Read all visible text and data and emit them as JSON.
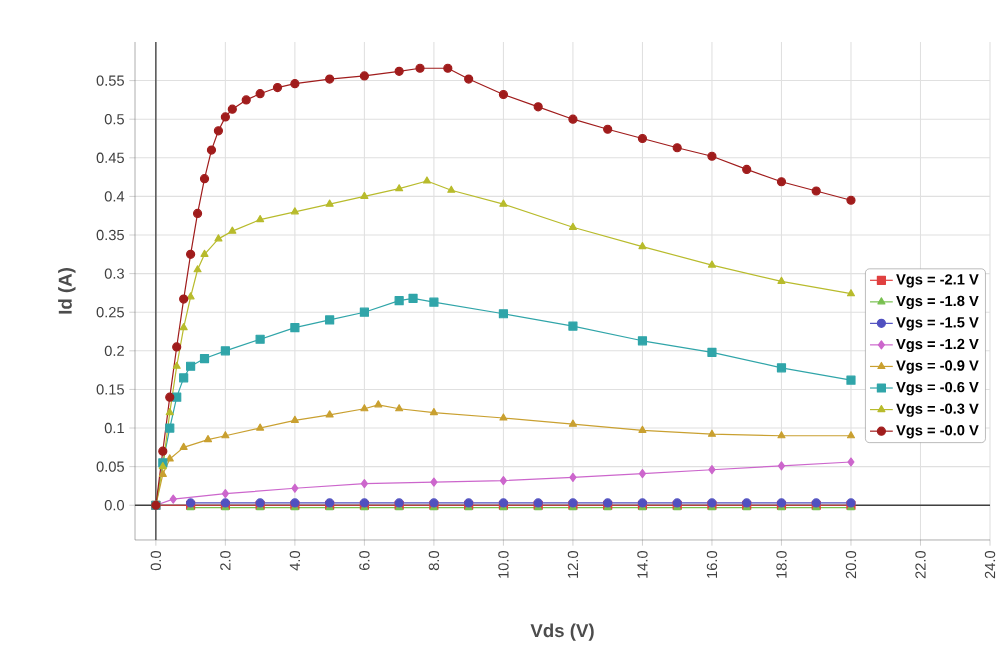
{
  "chart_data": {
    "type": "line",
    "xlabel": "Vds (V)",
    "ylabel": "Id (A)",
    "xlim": [
      -0.6,
      24
    ],
    "ylim": [
      -0.045,
      0.6
    ],
    "xticks": [
      {
        "value": 0,
        "label": "0.0"
      },
      {
        "value": 2,
        "label": "2.0"
      },
      {
        "value": 4,
        "label": "4.0"
      },
      {
        "value": 6,
        "label": "6.0"
      },
      {
        "value": 8,
        "label": "8.0"
      },
      {
        "value": 10,
        "label": "10.0"
      },
      {
        "value": 12,
        "label": "12.0"
      },
      {
        "value": 14,
        "label": "14.0"
      },
      {
        "value": 16,
        "label": "16.0"
      },
      {
        "value": 18,
        "label": "18.0"
      },
      {
        "value": 20,
        "label": "20.0"
      },
      {
        "value": 22,
        "label": "22.0"
      },
      {
        "value": 24,
        "label": "24.0"
      }
    ],
    "yticks": [
      {
        "value": 0,
        "label": "0.0"
      },
      0.05,
      0.1,
      0.15,
      0.2,
      0.25,
      0.3,
      0.35,
      0.4,
      0.45,
      0.5,
      0.55
    ],
    "grid": true,
    "legend": "right",
    "series": [
      {
        "name": "Vgs = -2.1 V",
        "color": "#e04040",
        "marker": "square",
        "x": [
          0,
          1,
          2,
          3,
          4,
          5,
          6,
          7,
          8,
          9,
          10,
          11,
          12,
          13,
          14,
          15,
          16,
          17,
          18,
          19,
          20
        ],
        "values": [
          0,
          0,
          0,
          0,
          0,
          0,
          0,
          0,
          0,
          0,
          0,
          0,
          0,
          0,
          0,
          0,
          0,
          0,
          0,
          0,
          0
        ]
      },
      {
        "name": "Vgs = -1.8 V",
        "color": "#78c050",
        "marker": "triangle",
        "x": [
          1,
          2,
          3,
          4,
          5,
          6,
          7,
          8,
          9,
          10,
          11,
          12,
          13,
          14,
          15,
          16,
          17,
          18,
          19,
          20
        ],
        "values": [
          -0.003,
          -0.003,
          -0.003,
          -0.003,
          -0.003,
          -0.003,
          -0.003,
          -0.003,
          -0.003,
          -0.003,
          -0.003,
          -0.003,
          -0.003,
          -0.003,
          -0.003,
          -0.003,
          -0.003,
          -0.003,
          -0.003,
          -0.003
        ]
      },
      {
        "name": "Vgs = -1.5 V",
        "color": "#5050c0",
        "marker": "circle",
        "x": [
          1,
          2,
          3,
          4,
          5,
          6,
          7,
          8,
          9,
          10,
          11,
          12,
          13,
          14,
          15,
          16,
          17,
          18,
          19,
          20
        ],
        "values": [
          0.003,
          0.003,
          0.003,
          0.003,
          0.003,
          0.003,
          0.003,
          0.003,
          0.003,
          0.003,
          0.003,
          0.003,
          0.003,
          0.003,
          0.003,
          0.003,
          0.003,
          0.003,
          0.003,
          0.003
        ]
      },
      {
        "name": "Vgs = -1.2 V",
        "color": "#cc66cc",
        "marker": "diamond",
        "x": [
          0,
          0.5,
          2,
          4,
          6,
          8,
          10,
          12,
          14,
          16,
          18,
          20
        ],
        "values": [
          0,
          0.008,
          0.015,
          0.022,
          0.028,
          0.03,
          0.032,
          0.036,
          0.041,
          0.046,
          0.051,
          0.056
        ]
      },
      {
        "name": "Vgs = -0.9 V",
        "color": "#c9a030",
        "marker": "triangle",
        "x": [
          0,
          0.2,
          0.4,
          0.8,
          1.5,
          2,
          3,
          4,
          5,
          6,
          6.4,
          7,
          8,
          10,
          12,
          14,
          16,
          18,
          20
        ],
        "values": [
          0,
          0.04,
          0.06,
          0.075,
          0.085,
          0.09,
          0.1,
          0.11,
          0.117,
          0.125,
          0.13,
          0.125,
          0.12,
          0.113,
          0.105,
          0.097,
          0.092,
          0.09,
          0.09
        ]
      },
      {
        "name": "Vgs = -0.6 V",
        "color": "#30a5a9",
        "marker": "square",
        "x": [
          0,
          0.2,
          0.4,
          0.6,
          0.8,
          1.0,
          1.4,
          2,
          3,
          4,
          5,
          6,
          7,
          7.4,
          8,
          10,
          12,
          14,
          16,
          18,
          20
        ],
        "values": [
          0,
          0.055,
          0.1,
          0.14,
          0.165,
          0.18,
          0.19,
          0.2,
          0.215,
          0.23,
          0.24,
          0.25,
          0.265,
          0.268,
          0.263,
          0.248,
          0.232,
          0.213,
          0.198,
          0.178,
          0.162
        ]
      },
      {
        "name": "Vgs = -0.3 V",
        "color": "#b8bb2c",
        "marker": "triangle",
        "x": [
          0,
          0.2,
          0.4,
          0.6,
          0.8,
          1.0,
          1.2,
          1.4,
          1.8,
          2.2,
          3,
          4,
          5,
          6,
          7,
          7.8,
          8.5,
          10,
          12,
          14,
          16,
          18,
          20
        ],
        "values": [
          0,
          0.05,
          0.12,
          0.18,
          0.23,
          0.27,
          0.305,
          0.325,
          0.345,
          0.355,
          0.37,
          0.38,
          0.39,
          0.4,
          0.41,
          0.42,
          0.408,
          0.39,
          0.36,
          0.335,
          0.311,
          0.29,
          0.274
        ]
      },
      {
        "name": "Vgs = -0.0 V",
        "color": "#a01c1c",
        "marker": "circle",
        "x": [
          0,
          0.2,
          0.4,
          0.6,
          0.8,
          1.0,
          1.2,
          1.4,
          1.6,
          1.8,
          2.0,
          2.2,
          2.6,
          3,
          3.5,
          4,
          5,
          6,
          7,
          7.6,
          8.4,
          9,
          10,
          11,
          12,
          13,
          14,
          15,
          16,
          17,
          18,
          19,
          20
        ],
        "values": [
          0,
          0.07,
          0.14,
          0.205,
          0.267,
          0.325,
          0.378,
          0.423,
          0.46,
          0.485,
          0.503,
          0.513,
          0.525,
          0.533,
          0.541,
          0.546,
          0.552,
          0.556,
          0.562,
          0.566,
          0.566,
          0.552,
          0.532,
          0.516,
          0.5,
          0.487,
          0.475,
          0.463,
          0.452,
          0.435,
          0.419,
          0.407,
          0.395
        ]
      }
    ]
  }
}
